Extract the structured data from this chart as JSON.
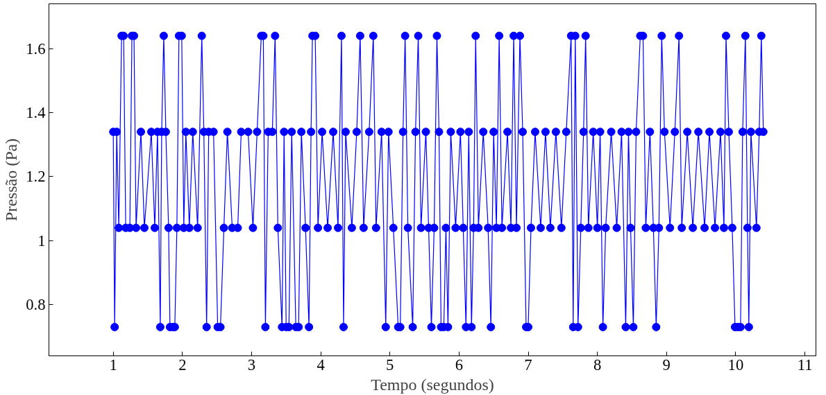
{
  "chart_data": {
    "type": "line",
    "xlabel": "Tempo (segundos)",
    "ylabel": "Pressão (Pa)",
    "xlim": [
      0.07,
      11.16
    ],
    "ylim": [
      0.64,
      1.74
    ],
    "xticks": [
      1,
      2,
      3,
      4,
      5,
      6,
      7,
      8,
      9,
      10,
      11
    ],
    "yticks": [
      0.8,
      1,
      1.2,
      1.4,
      1.6
    ],
    "grid": false,
    "marker": "circle",
    "line_style": "solid",
    "series": [
      {
        "color": "#0000ff",
        "x": [
          1.0,
          1.02,
          1.05,
          1.08,
          1.12,
          1.15,
          1.18,
          1.24,
          1.27,
          1.3,
          1.33,
          1.4,
          1.45,
          1.55,
          1.6,
          1.64,
          1.68,
          1.7,
          1.73,
          1.76,
          1.8,
          1.82,
          1.86,
          1.89,
          1.92,
          1.95,
          1.99,
          2.02,
          2.05,
          2.1,
          2.15,
          2.22,
          2.28,
          2.31,
          2.35,
          2.38,
          2.45,
          2.51,
          2.55,
          2.6,
          2.65,
          2.72,
          2.8,
          2.85,
          2.95,
          3.02,
          3.08,
          3.14,
          3.17,
          3.2,
          3.24,
          3.3,
          3.34,
          3.38,
          3.44,
          3.47,
          3.5,
          3.54,
          3.58,
          3.64,
          3.68,
          3.72,
          3.78,
          3.83,
          3.86,
          3.88,
          3.92,
          3.96,
          4.02,
          4.1,
          4.18,
          4.25,
          4.3,
          4.33,
          4.36,
          4.45,
          4.52,
          4.57,
          4.62,
          4.7,
          4.76,
          4.8,
          4.88,
          4.94,
          4.98,
          5.05,
          5.12,
          5.15,
          5.19,
          5.22,
          5.26,
          5.33,
          5.37,
          5.41,
          5.45,
          5.52,
          5.56,
          5.6,
          5.64,
          5.68,
          5.71,
          5.74,
          5.78,
          5.81,
          5.84,
          5.88,
          5.95,
          6.02,
          6.06,
          6.1,
          6.14,
          6.18,
          6.21,
          6.24,
          6.28,
          6.35,
          6.42,
          6.46,
          6.5,
          6.54,
          6.58,
          6.62,
          6.7,
          6.75,
          6.79,
          6.83,
          6.88,
          6.92,
          6.97,
          7.0,
          7.04,
          7.1,
          7.18,
          7.25,
          7.32,
          7.4,
          7.48,
          7.55,
          7.62,
          7.65,
          7.68,
          7.72,
          7.76,
          7.8,
          7.83,
          7.87,
          7.94,
          8.0,
          8.04,
          8.08,
          8.12,
          8.2,
          8.28,
          8.35,
          8.41,
          8.45,
          8.48,
          8.52,
          8.56,
          8.62,
          8.66,
          8.7,
          8.76,
          8.81,
          8.85,
          8.89,
          8.93,
          8.97,
          9.05,
          9.12,
          9.18,
          9.22,
          9.3,
          9.38,
          9.46,
          9.55,
          9.62,
          9.7,
          9.78,
          9.83,
          9.86,
          9.9,
          9.95,
          9.99,
          10.03,
          10.07,
          10.1,
          10.14,
          10.17,
          10.19,
          10.22,
          10.3,
          10.34,
          10.37,
          10.4
        ],
        "values": [
          1.34,
          0.73,
          1.34,
          1.04,
          1.64,
          1.64,
          1.04,
          1.04,
          1.64,
          1.64,
          1.04,
          1.34,
          1.04,
          1.34,
          1.04,
          1.34,
          0.73,
          1.34,
          1.64,
          1.34,
          1.04,
          0.73,
          0.73,
          0.73,
          1.04,
          1.64,
          1.64,
          1.04,
          1.34,
          1.04,
          1.34,
          1.04,
          1.64,
          1.34,
          0.73,
          1.34,
          1.34,
          0.73,
          0.73,
          1.04,
          1.34,
          1.04,
          1.04,
          1.34,
          1.34,
          1.04,
          1.34,
          1.64,
          1.64,
          0.73,
          1.34,
          1.34,
          1.64,
          1.04,
          0.73,
          1.34,
          0.73,
          0.73,
          1.34,
          0.73,
          0.73,
          1.34,
          1.04,
          0.73,
          1.34,
          1.64,
          1.64,
          1.04,
          1.34,
          1.04,
          1.34,
          1.04,
          1.64,
          0.73,
          1.34,
          1.04,
          1.34,
          1.64,
          1.04,
          1.34,
          1.64,
          1.04,
          1.34,
          0.73,
          1.34,
          1.04,
          0.73,
          0.73,
          1.34,
          1.64,
          1.04,
          0.73,
          1.34,
          1.64,
          1.04,
          1.34,
          1.04,
          0.73,
          1.04,
          1.64,
          1.34,
          0.73,
          0.73,
          1.04,
          0.73,
          1.34,
          1.04,
          1.34,
          1.04,
          0.73,
          1.34,
          0.73,
          1.04,
          1.64,
          1.04,
          1.34,
          1.04,
          0.73,
          1.34,
          1.04,
          1.64,
          1.04,
          1.34,
          1.04,
          1.64,
          1.04,
          1.64,
          1.34,
          0.73,
          0.73,
          1.04,
          1.34,
          1.04,
          1.34,
          1.04,
          1.34,
          1.04,
          1.34,
          1.64,
          0.73,
          1.64,
          0.73,
          1.04,
          1.34,
          1.64,
          1.04,
          1.34,
          1.04,
          1.34,
          0.73,
          1.04,
          1.34,
          1.04,
          1.34,
          0.73,
          1.34,
          1.04,
          0.73,
          1.34,
          1.64,
          1.64,
          1.04,
          1.34,
          1.04,
          0.73,
          1.04,
          1.64,
          1.34,
          1.04,
          1.34,
          1.64,
          1.04,
          1.34,
          1.04,
          1.34,
          1.04,
          1.34,
          1.04,
          1.34,
          1.04,
          1.64,
          1.34,
          1.04,
          0.73,
          0.73,
          0.73,
          1.34,
          1.64,
          1.04,
          0.73,
          1.34,
          1.04,
          1.34,
          1.64,
          1.34
        ]
      }
    ]
  }
}
